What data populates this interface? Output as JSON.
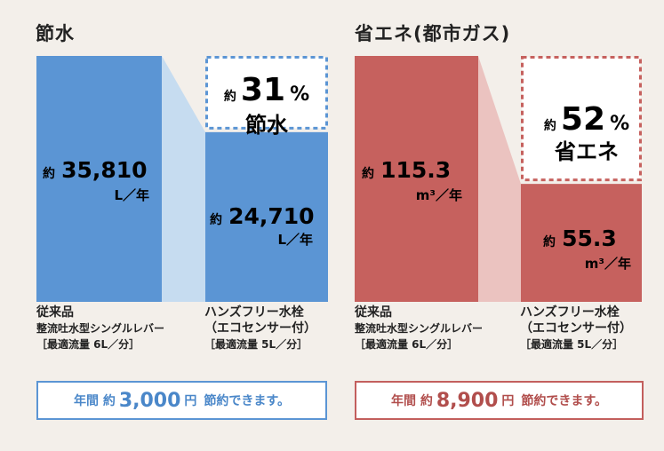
{
  "colors": {
    "water_bar": "#5b95d4",
    "water_connector": "#c6dcf0",
    "water_text": "#4a87c9",
    "gas_bar": "#c6615e",
    "gas_connector": "#ebc3c0",
    "gas_text": "#b14e4c"
  },
  "chart_data": [
    {
      "type": "bar",
      "title": "節水",
      "categories": [
        "従来品",
        "ハンズフリー水栓"
      ],
      "values": [
        35810,
        24710
      ],
      "unit": "L／年",
      "value_prefix": "約",
      "value_labels": [
        "35,810",
        "24,710"
      ],
      "reduction": {
        "prefix": "約",
        "value": 31,
        "unit": "%",
        "label": "節水"
      },
      "ylim": [
        0,
        35810
      ],
      "category_details": [
        {
          "name": "従来品",
          "sub": "整流吐水型シングルレバー",
          "flow": "［最適流量 6L／分］"
        },
        {
          "name": "ハンズフリー水栓",
          "sub": "（エコセンサー付）",
          "flow": "［最適流量 5L／分］"
        }
      ],
      "summary": {
        "prefix": "年間 約",
        "amount": "3,000",
        "unit": "円",
        "suffix": "節約できます。"
      }
    },
    {
      "type": "bar",
      "title": "省エネ(都市ガス)",
      "categories": [
        "従来品",
        "ハンズフリー水栓"
      ],
      "values": [
        115.3,
        55.3
      ],
      "unit": "m³／年",
      "value_prefix": "約",
      "value_labels": [
        "115.3",
        "55.3"
      ],
      "reduction": {
        "prefix": "約",
        "value": 52,
        "unit": "%",
        "label": "省エネ"
      },
      "ylim": [
        0,
        115.3
      ],
      "category_details": [
        {
          "name": "従来品",
          "sub": "整流吐水型シングルレバー",
          "flow": "［最適流量 6L／分］"
        },
        {
          "name": "ハンズフリー水栓",
          "sub": "（エコセンサー付）",
          "flow": "［最適流量 5L／分］"
        }
      ],
      "summary": {
        "prefix": "年間 約",
        "amount": "8,900",
        "unit": "円",
        "suffix": "節約できます。"
      }
    }
  ]
}
